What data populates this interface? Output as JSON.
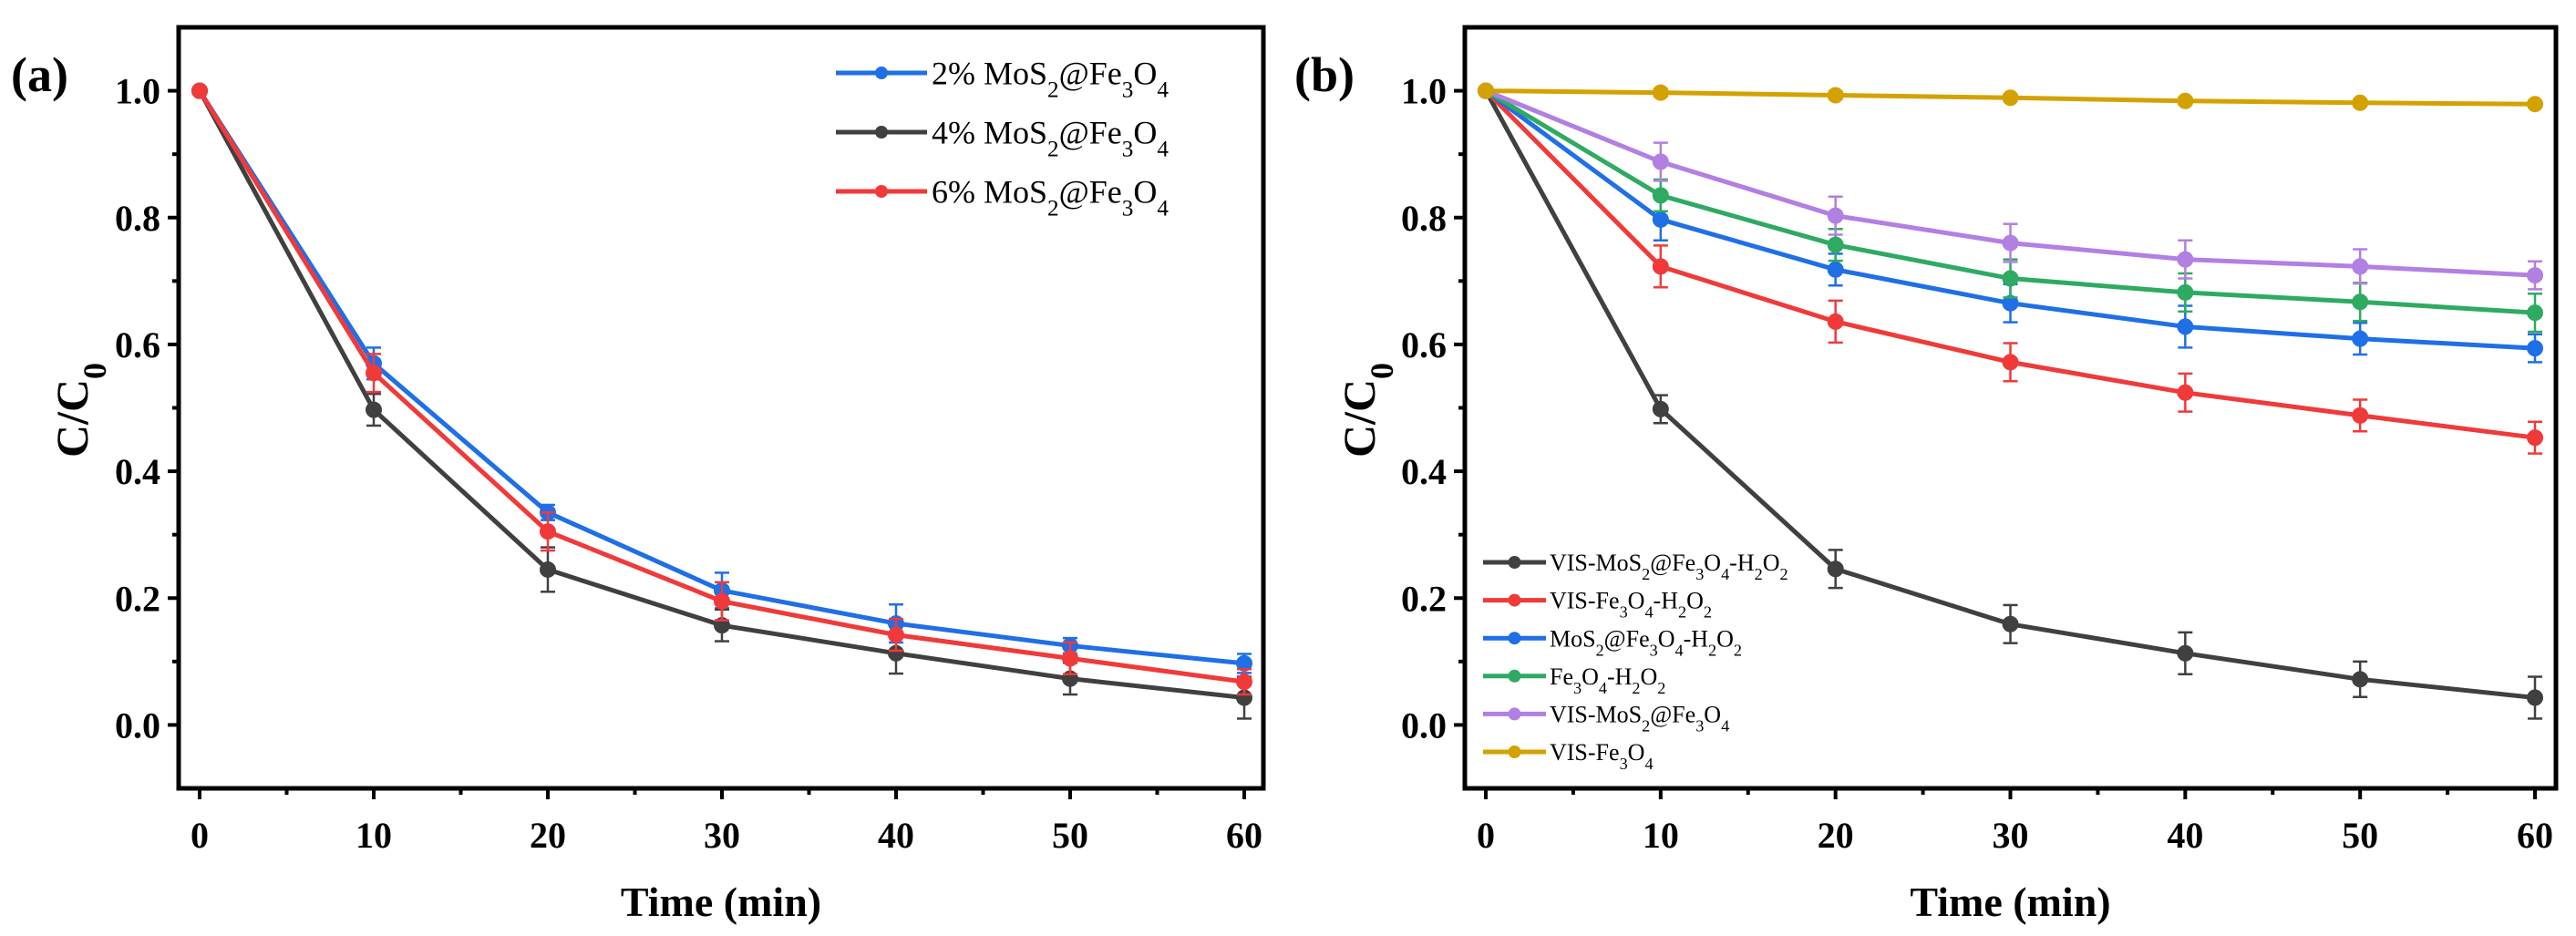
{
  "chart_data": [
    {
      "type": "line",
      "panel_label": "(a)",
      "xlabel": "Time (min)",
      "ylabel": "C/C0",
      "xlim": [
        -1,
        61
      ],
      "ylim": [
        -0.1,
        1.1
      ],
      "xticks": [
        0,
        10,
        20,
        30,
        40,
        50,
        60
      ],
      "yticks": [
        0.0,
        0.2,
        0.4,
        0.6,
        0.8,
        1.0
      ],
      "legend_position": "top-right",
      "x": [
        0,
        10,
        20,
        30,
        40,
        50,
        60
      ],
      "series": [
        {
          "name": "2% MoS2@Fe3O4",
          "color": "#1f6fe6",
          "values": [
            1.0,
            0.57,
            0.335,
            0.212,
            0.16,
            0.125,
            0.097
          ],
          "errors": [
            0.005,
            0.025,
            0.012,
            0.028,
            0.03,
            0.012,
            0.015
          ]
        },
        {
          "name": "4% MoS2@Fe3O4",
          "color": "#404040",
          "values": [
            1.0,
            0.497,
            0.245,
            0.157,
            0.113,
            0.073,
            0.043
          ],
          "errors": [
            0.005,
            0.025,
            0.035,
            0.025,
            0.032,
            0.025,
            0.033
          ]
        },
        {
          "name": "6% MoS2@Fe3O4",
          "color": "#f03a3a",
          "values": [
            1.0,
            0.555,
            0.305,
            0.195,
            0.142,
            0.105,
            0.068
          ],
          "errors": [
            0.005,
            0.03,
            0.03,
            0.03,
            0.025,
            0.025,
            0.02
          ]
        }
      ]
    },
    {
      "type": "line",
      "panel_label": "(b)",
      "xlabel": "Time (min)",
      "ylabel": "C/C0",
      "xlim": [
        -1,
        61
      ],
      "ylim": [
        -0.1,
        1.1
      ],
      "xticks": [
        0,
        10,
        20,
        30,
        40,
        50,
        60
      ],
      "yticks": [
        0.0,
        0.2,
        0.4,
        0.6,
        0.8,
        1.0
      ],
      "legend_position": "bottom-left",
      "x": [
        0,
        10,
        20,
        30,
        40,
        50,
        60
      ],
      "series": [
        {
          "name": "VIS-MoS2@Fe3O4-H2O2",
          "color": "#404040",
          "values": [
            1.0,
            0.498,
            0.246,
            0.159,
            0.113,
            0.072,
            0.043
          ],
          "errors": [
            0.005,
            0.022,
            0.03,
            0.03,
            0.033,
            0.028,
            0.033
          ]
        },
        {
          "name": "VIS-Fe3O4-H2O2",
          "color": "#f03a3a",
          "values": [
            1.0,
            0.723,
            0.636,
            0.572,
            0.524,
            0.488,
            0.453
          ],
          "errors": [
            0.005,
            0.033,
            0.033,
            0.03,
            0.03,
            0.025,
            0.025
          ]
        },
        {
          "name": "MoS2@Fe3O4-H2O2",
          "color": "#1f6fe6",
          "values": [
            1.0,
            0.797,
            0.718,
            0.665,
            0.628,
            0.609,
            0.594
          ],
          "errors": [
            0.005,
            0.033,
            0.025,
            0.03,
            0.033,
            0.025,
            0.022
          ]
        },
        {
          "name": "Fe3O4-H2O2",
          "color": "#2eaa62",
          "values": [
            1.0,
            0.835,
            0.757,
            0.704,
            0.682,
            0.667,
            0.65
          ],
          "errors": [
            0.005,
            0.025,
            0.025,
            0.03,
            0.03,
            0.03,
            0.03
          ]
        },
        {
          "name": "VIS-MoS2@Fe3O4",
          "color": "#b27fe3",
          "values": [
            1.0,
            0.888,
            0.803,
            0.76,
            0.734,
            0.723,
            0.709
          ],
          "errors": [
            0.005,
            0.03,
            0.03,
            0.03,
            0.03,
            0.027,
            0.022
          ]
        },
        {
          "name": "VIS-Fe3O4",
          "color": "#d4a200",
          "values": [
            1.0,
            0.997,
            0.993,
            0.989,
            0.984,
            0.981,
            0.979
          ],
          "errors": [
            0.004,
            0.006,
            0.006,
            0.005,
            0.005,
            0.005,
            0.005
          ]
        }
      ]
    }
  ]
}
